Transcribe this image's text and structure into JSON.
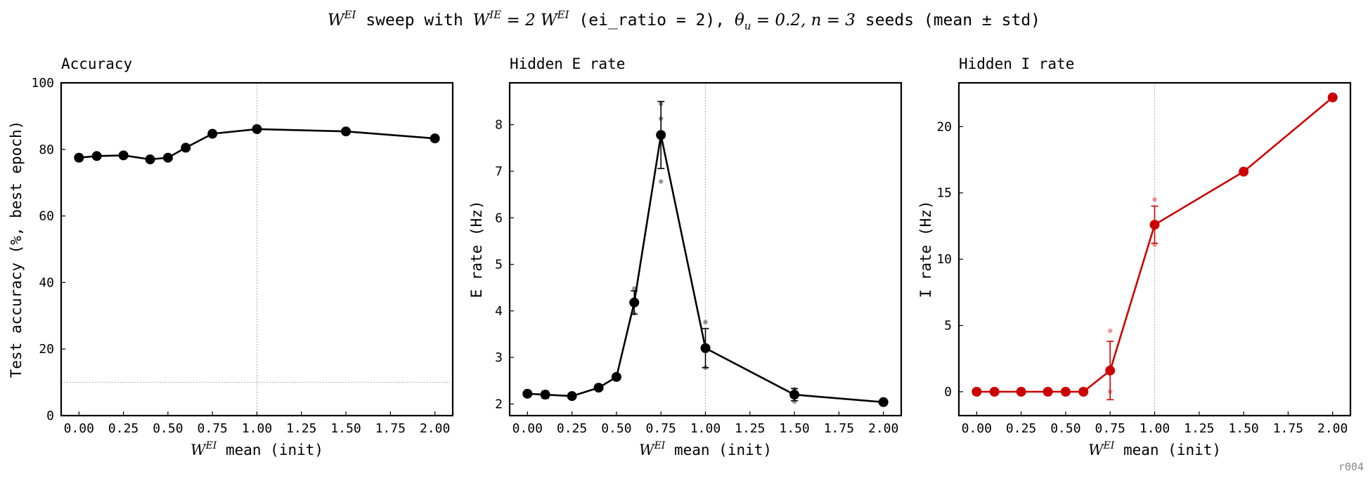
{
  "figure": {
    "suptitle": {
      "W": "W",
      "EI": "EI",
      "t1": " sweep with ",
      "IE": "IE",
      "eq": " = 2 ",
      "t2": " (ei_ratio = 2), ",
      "theta": "θ",
      "u": "u",
      "theta_val": " = 0.2, ",
      "n": "n",
      "n_val": " = 3",
      "t3": " seeds (mean ± std)"
    },
    "watermark": "r004"
  },
  "chart_data": [
    {
      "type": "line",
      "title": "Accuracy",
      "xlabel": "mean (init)",
      "xlabel_math_base": "W",
      "xlabel_math_sup": "EI",
      "ylabel": "Test accuracy (%, best epoch)",
      "xlim": [
        -0.1,
        2.1
      ],
      "ylim": [
        0,
        100
      ],
      "xticks": [
        "0.00",
        "0.25",
        "0.50",
        "0.75",
        "1.00",
        "1.25",
        "1.50",
        "1.75",
        "2.00"
      ],
      "yticks": [
        "0",
        "20",
        "40",
        "60",
        "80",
        "100"
      ],
      "color": "#000000",
      "vline_x": 1.0,
      "hline_y": 10,
      "series": [
        {
          "x": [
            0.0,
            0.1,
            0.25,
            0.4,
            0.5,
            0.6,
            0.75,
            1.0,
            1.5,
            2.0
          ],
          "y": [
            77.5,
            78.0,
            78.2,
            77.0,
            77.5,
            80.5,
            84.7,
            86.1,
            85.4,
            83.3
          ],
          "err": [
            1.0,
            0.5,
            0.5,
            0.5,
            0.8,
            0.5,
            0.5,
            0.3,
            0.4,
            0.3
          ]
        }
      ],
      "seeds": []
    },
    {
      "type": "line",
      "title": "Hidden E rate",
      "xlabel": "mean (init)",
      "xlabel_math_base": "W",
      "xlabel_math_sup": "EI",
      "ylabel": "E rate (Hz)",
      "xlim": [
        -0.1,
        2.1
      ],
      "ylim": [
        1.75,
        8.9
      ],
      "xticks": [
        "0.00",
        "0.25",
        "0.50",
        "0.75",
        "1.00",
        "1.25",
        "1.50",
        "1.75",
        "2.00"
      ],
      "yticks": [
        "2",
        "3",
        "4",
        "5",
        "6",
        "7",
        "8"
      ],
      "color": "#000000",
      "vline_x": 1.0,
      "hline_y": null,
      "series": [
        {
          "x": [
            0.0,
            0.1,
            0.25,
            0.4,
            0.5,
            0.6,
            0.75,
            1.0,
            1.5,
            2.0
          ],
          "y": [
            2.22,
            2.2,
            2.17,
            2.35,
            2.58,
            4.18,
            7.78,
            3.2,
            2.2,
            2.04
          ],
          "err": [
            0.07,
            0.08,
            0.04,
            0.04,
            0.04,
            0.25,
            0.72,
            0.42,
            0.13,
            0.03
          ]
        }
      ],
      "seeds": [
        {
          "x": 0.6,
          "y": 3.95
        },
        {
          "x": 0.6,
          "y": 4.48
        },
        {
          "x": 0.75,
          "y": 6.78
        },
        {
          "x": 0.75,
          "y": 8.13
        },
        {
          "x": 0.75,
          "y": 8.45
        },
        {
          "x": 1.0,
          "y": 2.78
        },
        {
          "x": 1.0,
          "y": 3.76
        },
        {
          "x": 1.5,
          "y": 2.05
        },
        {
          "x": 1.5,
          "y": 2.32
        }
      ]
    },
    {
      "type": "line",
      "title": "Hidden I rate",
      "xlabel": "mean (init)",
      "xlabel_math_base": "W",
      "xlabel_math_sup": "EI",
      "ylabel": "I rate (Hz)",
      "xlim": [
        -0.1,
        2.1
      ],
      "ylim": [
        -1.8,
        23.3
      ],
      "xticks": [
        "0.00",
        "0.25",
        "0.50",
        "0.75",
        "1.00",
        "1.25",
        "1.50",
        "1.75",
        "2.00"
      ],
      "yticks": [
        "0",
        "5",
        "10",
        "15",
        "20"
      ],
      "color": "#cc0000",
      "vline_x": 1.0,
      "hline_y": null,
      "series": [
        {
          "x": [
            0.0,
            0.1,
            0.25,
            0.4,
            0.5,
            0.6,
            0.75,
            1.0,
            1.5,
            2.0
          ],
          "y": [
            0.0,
            0.0,
            0.0,
            0.0,
            0.0,
            0.0,
            1.6,
            12.6,
            16.6,
            22.2
          ],
          "err": [
            0,
            0,
            0,
            0,
            0,
            0,
            2.2,
            1.4,
            0,
            0
          ]
        }
      ],
      "seeds": [
        {
          "x": 0.75,
          "y": 4.6
        },
        {
          "x": 0.75,
          "y": 0.0
        },
        {
          "x": 1.0,
          "y": 14.5
        },
        {
          "x": 1.0,
          "y": 11.1
        }
      ]
    }
  ]
}
